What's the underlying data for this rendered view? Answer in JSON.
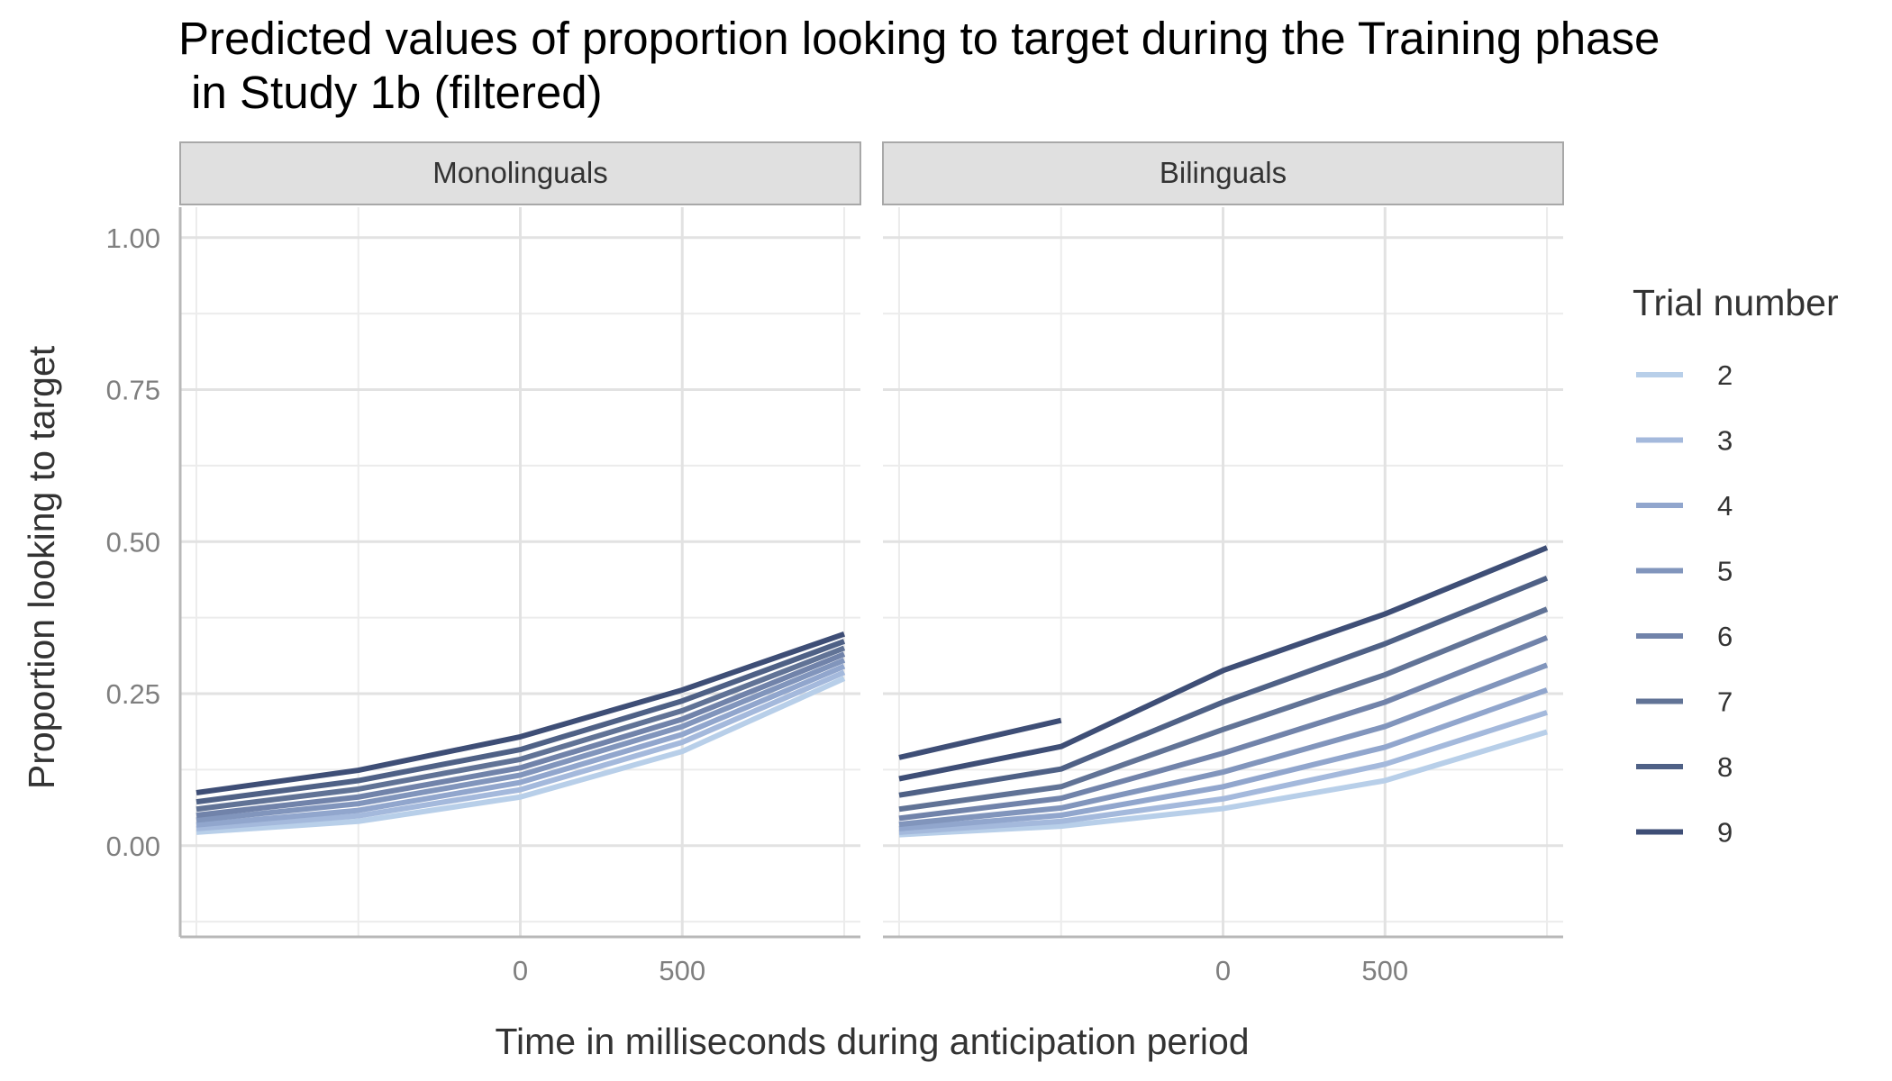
{
  "chart_data": {
    "type": "line",
    "title_line1": "Predicted values of proportion looking to target during the Training phase",
    "title_line2": " in Study 1b (filtered)",
    "xlabel": "Time in milliseconds during anticipation period",
    "ylabel": "Proportion looking to target",
    "xlim": [
      -1050,
      1050
    ],
    "ylim": [
      -0.15,
      1.05
    ],
    "x_ticks": [
      0,
      500
    ],
    "x_tick_labels": [
      "0",
      "500"
    ],
    "y_ticks": [
      0,
      0.25,
      0.5,
      0.75,
      1
    ],
    "y_tick_labels": [
      "0.00",
      "0.25",
      "0.50",
      "0.75",
      "1.00"
    ],
    "grid": true,
    "legend": {
      "title": "Trial number",
      "position": "right"
    },
    "x": [
      -1000,
      -500,
      0,
      500,
      1000
    ],
    "panels": [
      {
        "name": "Monolinguals",
        "series": [
          {
            "name": "2",
            "color": "#b8cfe9",
            "values": [
              0.022,
              0.04,
              0.08,
              0.155,
              0.275
            ]
          },
          {
            "name": "3",
            "color": "#a4b9dc",
            "values": [
              0.028,
              0.049,
              0.092,
              0.17,
              0.285
            ]
          },
          {
            "name": "4",
            "color": "#91a6cd",
            "values": [
              0.034,
              0.058,
              0.104,
              0.183,
              0.295
            ]
          },
          {
            "name": "5",
            "color": "#8195bc",
            "values": [
              0.042,
              0.069,
              0.116,
              0.196,
              0.305
            ]
          },
          {
            "name": "6",
            "color": "#7183aa",
            "values": [
              0.05,
              0.08,
              0.128,
              0.208,
              0.315
            ]
          },
          {
            "name": "7",
            "color": "#617396",
            "values": [
              0.06,
              0.093,
              0.142,
              0.222,
              0.325
            ]
          },
          {
            "name": "8",
            "color": "#4f6186",
            "values": [
              0.072,
              0.107,
              0.158,
              0.238,
              0.336
            ]
          },
          {
            "name": "9",
            "color": "#3e4e76",
            "values": [
              0.087,
              0.124,
              0.179,
              0.256,
              0.348
            ]
          }
        ]
      },
      {
        "name": "Bilinguals",
        "series": [
          {
            "name": "2",
            "color": "#b8cfe9",
            "values": [
              0.018,
              0.032,
              0.061,
              0.107,
              0.187
            ]
          },
          {
            "name": "3",
            "color": "#a4b9dc",
            "values": [
              0.022,
              0.04,
              0.077,
              0.134,
              0.219
            ]
          },
          {
            "name": "4",
            "color": "#91a6cd",
            "values": [
              0.028,
              0.05,
              0.097,
              0.162,
              0.256
            ]
          },
          {
            "name": "5",
            "color": "#8195bc",
            "values": [
              0.035,
              0.062,
              0.121,
              0.196,
              0.297
            ]
          },
          {
            "name": "6",
            "color": "#7183aa",
            "values": [
              0.045,
              0.078,
              0.152,
              0.236,
              0.342
            ]
          },
          {
            "name": "7",
            "color": "#617396",
            "values": [
              0.06,
              0.097,
              0.191,
              0.281,
              0.389
            ]
          },
          {
            "name": "8",
            "color": "#4f6186",
            "values": [
              0.083,
              0.126,
              0.236,
              0.332,
              0.44
            ]
          },
          {
            "name": "9",
            "color": "#3e4e76",
            "values": [
              0.11,
              0.163,
              0.288,
              0.381,
              0.49
            ]
          },
          {
            "name": "",
            "color": "#3e4e76",
            "values": [
              0.145,
              0.206,
              null,
              null,
              null
            ]
          }
        ]
      }
    ]
  }
}
